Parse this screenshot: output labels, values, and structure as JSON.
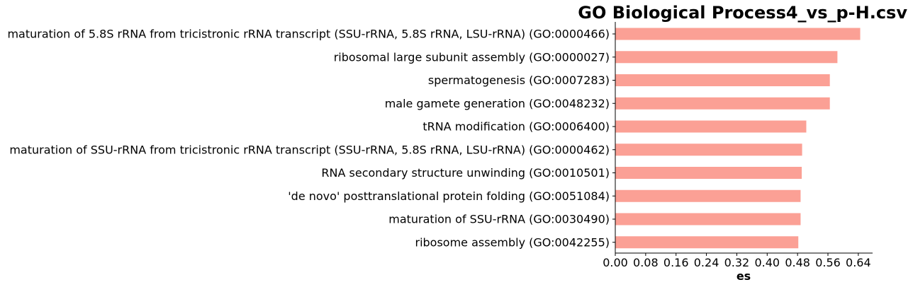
{
  "chart_data": {
    "type": "bar",
    "orientation": "horizontal",
    "title": "GO Biological Process4_vs_p-H.csv",
    "xlabel": "es",
    "ylabel": "",
    "xlim": [
      0,
      0.6776
    ],
    "xticks": [
      "0.00",
      "0.08",
      "0.16",
      "0.24",
      "0.32",
      "0.40",
      "0.48",
      "0.56",
      "0.64"
    ],
    "bar_color": "#fba095",
    "grid": false,
    "categories": [
      "maturation of 5.8S rRNA from tricistronic rRNA transcript (SSU-rRNA, 5.8S rRNA, LSU-rRNA) (GO:0000466)",
      "ribosomal large subunit assembly (GO:0000027)",
      "spermatogenesis (GO:0007283)",
      "male gamete generation (GO:0048232)",
      "tRNA modification (GO:0006400)",
      "maturation of SSU-rRNA from tricistronic rRNA transcript (SSU-rRNA, 5.8S rRNA, LSU-rRNA) (GO:0000462)",
      "RNA secondary structure unwinding (GO:0010501)",
      "'de novo' posttranslational protein folding (GO:0051084)",
      "maturation of SSU-rRNA (GO:0030490)",
      "ribosome assembly (GO:0042255)"
    ],
    "values": [
      0.645,
      0.585,
      0.565,
      0.565,
      0.503,
      0.492,
      0.491,
      0.488,
      0.488,
      0.482
    ]
  }
}
